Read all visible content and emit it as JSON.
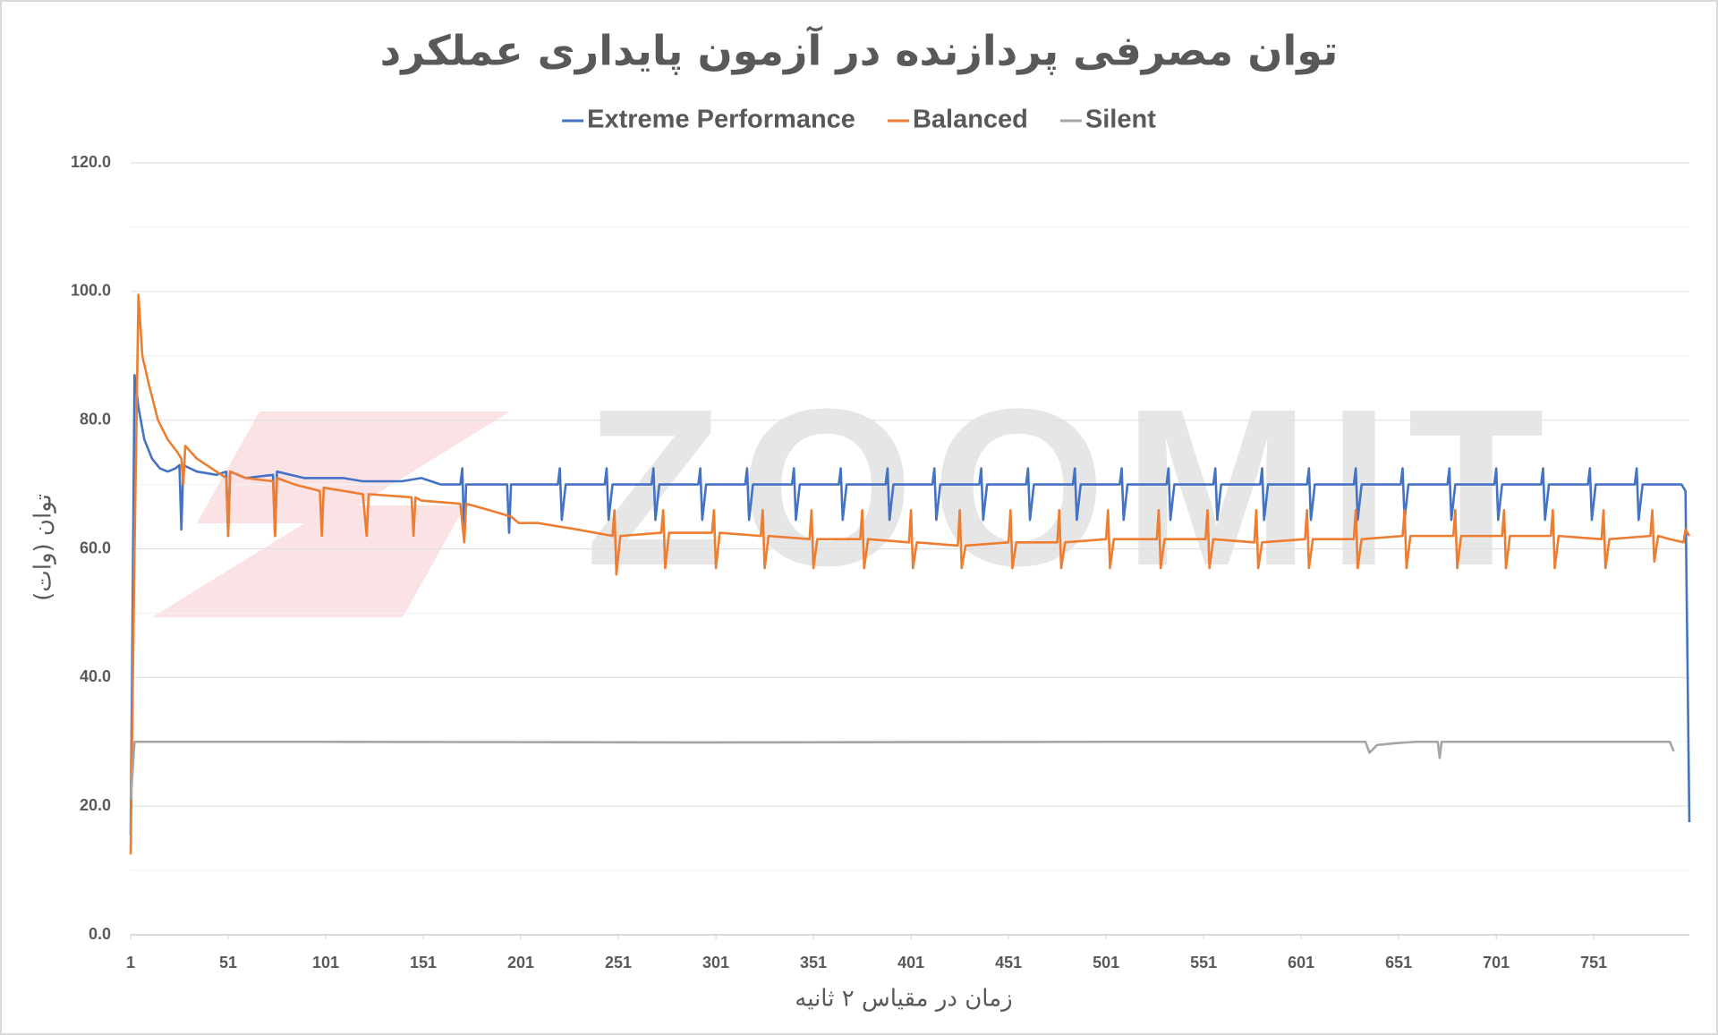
{
  "chart_data": {
    "type": "line",
    "title": "توان مصرفی پردازنده در آزمون پایداری عملکرد",
    "xlabel": "زمان در مقیاس ۲ ثانیه",
    "ylabel": "توان (وات)",
    "watermark": "ZOOMIT",
    "xlim": [
      1,
      800
    ],
    "xticks": [
      1,
      51,
      101,
      151,
      201,
      251,
      301,
      351,
      401,
      451,
      501,
      551,
      601,
      651,
      701,
      751
    ],
    "ylim": [
      0,
      120
    ],
    "yticks": [
      {
        "value": 0,
        "label": "0.0"
      },
      {
        "value": 20,
        "label": "20.0"
      },
      {
        "value": 40,
        "label": "40.0"
      },
      {
        "value": 60,
        "label": "60.0"
      },
      {
        "value": 80,
        "label": "80.0"
      },
      {
        "value": 100,
        "label": "100.0"
      },
      {
        "value": 120,
        "label": "120.0"
      }
    ],
    "yminorticks": [
      10,
      30,
      50,
      70,
      90,
      110
    ],
    "grid": true,
    "legend": "top",
    "series": [
      {
        "name": "Extreme Performance",
        "color": "#4472c4",
        "x": [
          1,
          2,
          3,
          5,
          8,
          12,
          16,
          20,
          24,
          26,
          27,
          28,
          35,
          45,
          50,
          51,
          52,
          60,
          74,
          75,
          76,
          90,
          100,
          110,
          120,
          140,
          150,
          160,
          170,
          171,
          172,
          173,
          194,
          195,
          196,
          220,
          221,
          222,
          224,
          244,
          245,
          246,
          248,
          268,
          269,
          270,
          272,
          292,
          293,
          294,
          296,
          316,
          317,
          318,
          320,
          340,
          341,
          342,
          344,
          364,
          365,
          366,
          368,
          388,
          389,
          390,
          392,
          412,
          413,
          414,
          416,
          436,
          437,
          438,
          440,
          460,
          461,
          462,
          464,
          484,
          485,
          486,
          488,
          508,
          509,
          510,
          512,
          532,
          533,
          534,
          536,
          556,
          557,
          558,
          560,
          580,
          581,
          582,
          584,
          604,
          605,
          606,
          608,
          628,
          629,
          630,
          632,
          652,
          653,
          654,
          656,
          676,
          677,
          678,
          680,
          700,
          701,
          702,
          704,
          724,
          725,
          726,
          728,
          748,
          749,
          750,
          752,
          772,
          773,
          774,
          776,
          796,
          798,
          800
        ],
        "values": [
          15.5,
          50,
          87,
          82,
          77,
          74,
          72.5,
          72,
          72.5,
          73,
          63,
          73,
          72,
          71.5,
          72,
          62,
          72,
          71,
          71.5,
          62,
          72,
          71,
          71,
          71,
          70.5,
          70.5,
          71,
          70,
          70,
          72.5,
          62,
          70,
          70,
          62.5,
          70,
          70,
          72.5,
          64.5,
          70,
          70,
          72.5,
          64.5,
          70,
          70,
          72.5,
          64.5,
          70,
          70,
          72.5,
          64.5,
          70,
          70,
          72.5,
          64.5,
          70,
          70,
          72.5,
          64.5,
          70,
          70,
          72.5,
          64.5,
          70,
          70,
          72.5,
          64.5,
          70,
          70,
          72.5,
          64.5,
          70,
          70,
          72.5,
          64.5,
          70,
          70,
          72.5,
          64.5,
          70,
          70,
          72.5,
          64.5,
          70,
          70,
          72.5,
          64.5,
          70,
          70,
          72.5,
          64.5,
          70,
          70,
          72.5,
          64.5,
          70,
          70,
          72.5,
          64.5,
          70,
          70,
          72.5,
          64.5,
          70,
          70,
          72.5,
          64.5,
          70,
          70,
          72.5,
          64.5,
          70,
          70,
          72.5,
          64.5,
          70,
          70,
          72.5,
          64.5,
          70,
          70,
          72.5,
          64.5,
          70,
          70,
          72.5,
          64.5,
          70,
          70,
          72.5,
          64.5,
          70,
          70,
          69,
          17.5
        ]
      },
      {
        "name": "Balanced",
        "color": "#ed7d31",
        "x": [
          1,
          3,
          5,
          7,
          10,
          15,
          20,
          25,
          27,
          28,
          29,
          35,
          45,
          50,
          51,
          52,
          60,
          74,
          75,
          76,
          85,
          98,
          99,
          100,
          120,
          122,
          123,
          145,
          146,
          147,
          150,
          170,
          172,
          173,
          185,
          196,
          200,
          210,
          230,
          248,
          249,
          250,
          252,
          273,
          274,
          275,
          277,
          299,
          300,
          301,
          303,
          324,
          325,
          326,
          328,
          349,
          350,
          351,
          353,
          375,
          376,
          377,
          379,
          400,
          401,
          402,
          404,
          425,
          426,
          427,
          429,
          451,
          452,
          453,
          455,
          476,
          477,
          478,
          480,
          501,
          502,
          503,
          505,
          527,
          528,
          529,
          531,
          552,
          553,
          554,
          556,
          577,
          578,
          579,
          581,
          603,
          604,
          605,
          607,
          628,
          629,
          630,
          632,
          653,
          654,
          655,
          657,
          679,
          680,
          681,
          683,
          704,
          705,
          706,
          708,
          729,
          730,
          731,
          733,
          755,
          756,
          757,
          759,
          780,
          781,
          782,
          784,
          790,
          797,
          798,
          800
        ],
        "values": [
          12.5,
          60,
          99.5,
          90,
          86,
          80,
          77,
          75,
          74,
          70,
          76,
          74,
          72,
          71,
          62,
          72,
          71,
          70.5,
          62,
          71,
          70,
          69,
          62,
          69.5,
          68.5,
          62,
          68.5,
          68,
          62,
          68,
          67.5,
          67,
          61,
          67,
          66,
          65,
          64,
          64,
          63,
          62,
          66,
          56,
          62,
          62.5,
          66,
          57,
          62.5,
          62.5,
          66,
          57,
          62.5,
          62,
          66,
          57,
          62,
          61.5,
          66,
          57,
          61.5,
          61.5,
          66,
          57,
          61.5,
          61,
          66,
          57,
          61,
          60.5,
          66,
          57,
          60.5,
          61,
          66,
          57,
          61,
          61,
          66,
          57,
          61,
          61.5,
          66,
          57,
          61.5,
          61.5,
          66,
          57,
          61.5,
          61.5,
          66,
          57,
          61.5,
          61,
          66,
          57,
          61,
          61.5,
          66,
          57,
          61.5,
          61.5,
          66,
          57,
          61.5,
          62,
          66,
          57,
          62,
          62,
          66,
          57,
          62,
          62,
          66,
          57,
          62,
          62,
          66,
          57,
          62,
          61.5,
          66,
          57,
          61.5,
          62,
          66,
          58,
          62,
          61.5,
          61,
          63,
          62
        ]
      },
      {
        "name": "Silent",
        "color": "#a5a5a5",
        "x": [
          1,
          3,
          100,
          300,
          500,
          634,
          636,
          640,
          650,
          660,
          671,
          672,
          673,
          700,
          790,
          792
        ],
        "values": [
          21,
          30,
          30,
          29.9,
          30,
          30,
          28.3,
          29.5,
          29.8,
          30,
          30,
          27.5,
          30,
          30,
          30,
          28.5
        ]
      }
    ]
  }
}
